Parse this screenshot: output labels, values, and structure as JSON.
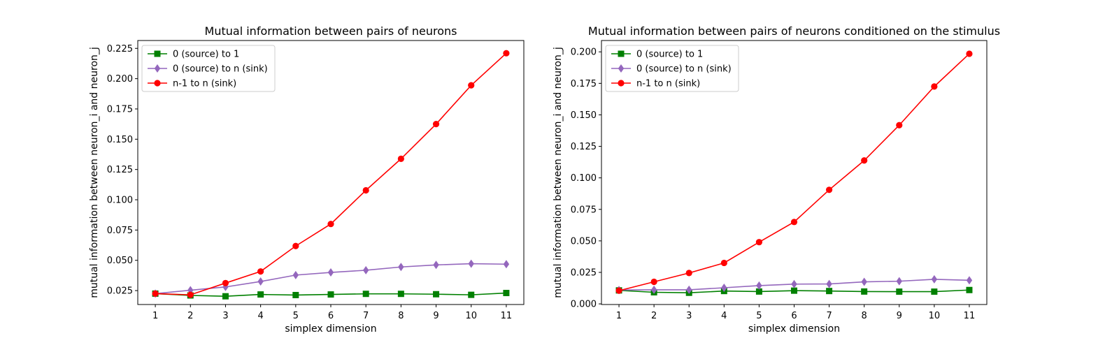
{
  "chart_data": [
    {
      "type": "line",
      "title": "Mutual information between pairs of neurons",
      "xlabel": "simplex dimension",
      "ylabel": "mutual information between neuron_i and neuron_j",
      "x": [
        1,
        2,
        3,
        4,
        5,
        6,
        7,
        8,
        9,
        10,
        11
      ],
      "xticks": [
        "1",
        "2",
        "3",
        "4",
        "5",
        "6",
        "7",
        "8",
        "9",
        "10",
        "11"
      ],
      "xlim": [
        0.5,
        11.5
      ],
      "ylim": [
        0.0135,
        0.2315
      ],
      "yticks": [
        "0.025",
        "0.050",
        "0.075",
        "0.100",
        "0.125",
        "0.150",
        "0.175",
        "0.200",
        "0.225"
      ],
      "grid": false,
      "legend_position": "upper-left",
      "series": [
        {
          "name": "0 (source) to 1",
          "color": "#008000",
          "marker": "square",
          "values": [
            0.0225,
            0.021,
            0.0203,
            0.0218,
            0.0213,
            0.0218,
            0.0223,
            0.0223,
            0.022,
            0.0215,
            0.023
          ]
        },
        {
          "name": "0 (source) to n (sink)",
          "color": "#9467bd",
          "marker": "diamond",
          "values": [
            0.0225,
            0.0253,
            0.028,
            0.0325,
            0.0378,
            0.04,
            0.0418,
            0.0445,
            0.0462,
            0.0472,
            0.0468
          ]
        },
        {
          "name": "n-1 to n (sink)",
          "color": "#ff0000",
          "marker": "circle",
          "values": [
            0.0225,
            0.0215,
            0.0312,
            0.0408,
            0.0618,
            0.08,
            0.1078,
            0.1338,
            0.1625,
            0.1945,
            0.221
          ]
        }
      ]
    },
    {
      "type": "line",
      "title": "Mutual information between pairs of neurons conditioned on the stimulus",
      "xlabel": "simplex dimension",
      "ylabel": "mutual information between neuron_i and neuron_j",
      "x": [
        1,
        2,
        3,
        4,
        5,
        6,
        7,
        8,
        9,
        10,
        11
      ],
      "xticks": [
        "1",
        "2",
        "3",
        "4",
        "5",
        "6",
        "7",
        "8",
        "9",
        "10",
        "11"
      ],
      "xlim": [
        0.5,
        11.5
      ],
      "ylim": [
        -0.0005,
        0.209
      ],
      "yticks": [
        "0.000",
        "0.025",
        "0.050",
        "0.075",
        "0.100",
        "0.125",
        "0.150",
        "0.175",
        "0.200"
      ],
      "grid": false,
      "legend_position": "upper-left",
      "series": [
        {
          "name": "0 (source) to 1",
          "color": "#008000",
          "marker": "square",
          "values": [
            0.0107,
            0.0092,
            0.0088,
            0.0102,
            0.0098,
            0.0105,
            0.0102,
            0.0098,
            0.0097,
            0.0097,
            0.011
          ]
        },
        {
          "name": "0 (source) to n (sink)",
          "color": "#9467bd",
          "marker": "diamond",
          "values": [
            0.011,
            0.0112,
            0.0112,
            0.0128,
            0.0145,
            0.0157,
            0.0158,
            0.0175,
            0.018,
            0.0195,
            0.0187
          ]
        },
        {
          "name": "n-1 to n (sink)",
          "color": "#ff0000",
          "marker": "circle",
          "values": [
            0.0105,
            0.0175,
            0.0245,
            0.0325,
            0.049,
            0.065,
            0.0905,
            0.1138,
            0.1418,
            0.1725,
            0.1985
          ]
        }
      ]
    }
  ]
}
